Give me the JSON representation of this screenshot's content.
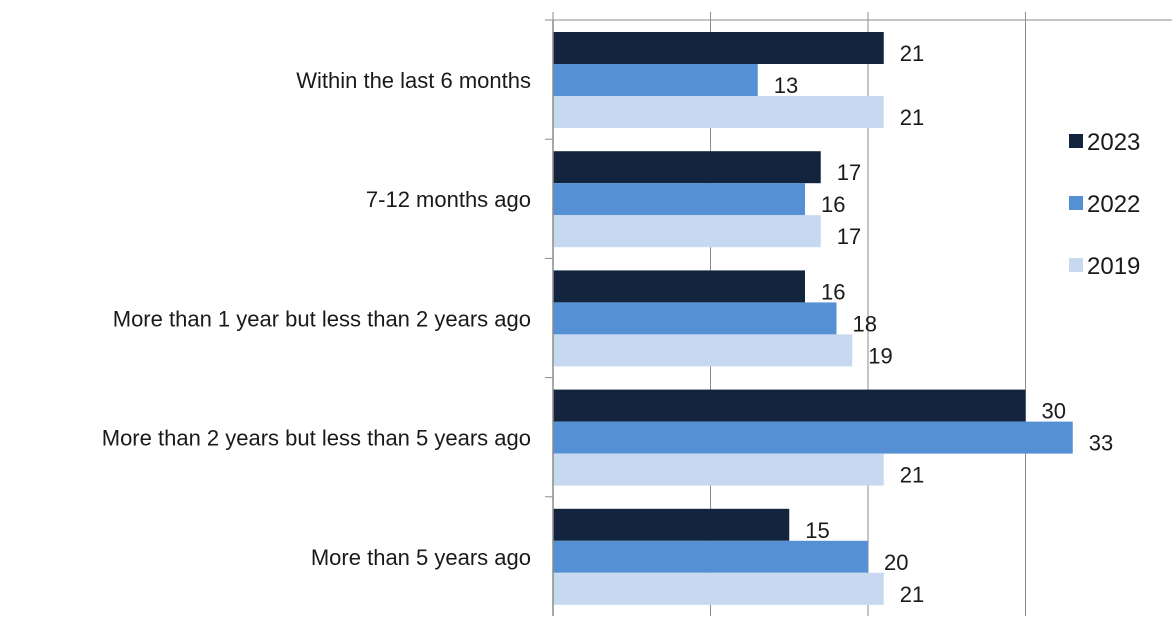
{
  "chart_data": {
    "type": "bar",
    "orientation": "horizontal",
    "categories": [
      "Within the last 6 months",
      "7-12 months ago",
      "More than 1 year but less than 2 years ago",
      "More than 2 years but less than 5 years ago",
      "More than 5 years ago"
    ],
    "series": [
      {
        "name": "2023",
        "color": "#13243f",
        "values": [
          21,
          17,
          16,
          30,
          15
        ]
      },
      {
        "name": "2022",
        "color": "#5590d5",
        "values": [
          13,
          16,
          18,
          33,
          20
        ]
      },
      {
        "name": "2019",
        "color": "#c6d9f1",
        "values": [
          21,
          17,
          19,
          21,
          21
        ]
      }
    ],
    "xlim": [
      0,
      40
    ],
    "x_grid": true,
    "legend_position": "right",
    "title": "",
    "xlabel": "",
    "ylabel": ""
  }
}
